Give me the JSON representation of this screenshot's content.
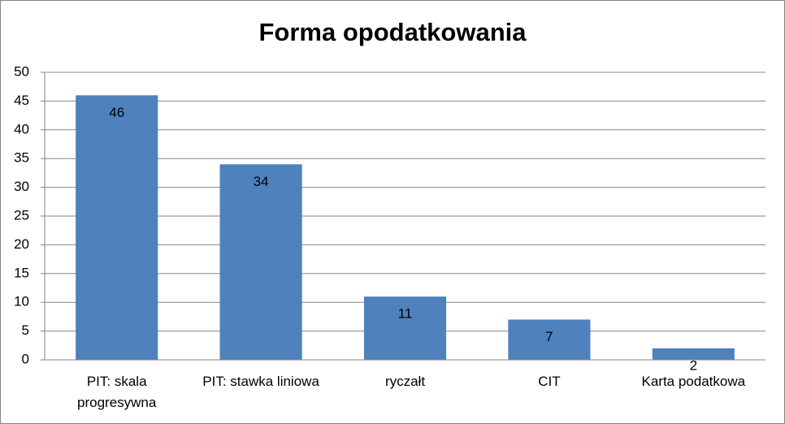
{
  "chart_data": {
    "type": "bar",
    "title": "Forma opodatkowania",
    "categories": [
      "PIT: skala progresywna",
      "PIT: stawka liniowa",
      "ryczałt",
      "CIT",
      "Karta podatkowa"
    ],
    "values": [
      46,
      34,
      11,
      7,
      2
    ],
    "color": "#4f81bd",
    "ylim": [
      0,
      50
    ],
    "yticks": [
      0,
      5,
      10,
      15,
      20,
      25,
      30,
      35,
      40,
      45,
      50
    ],
    "grid": true
  }
}
